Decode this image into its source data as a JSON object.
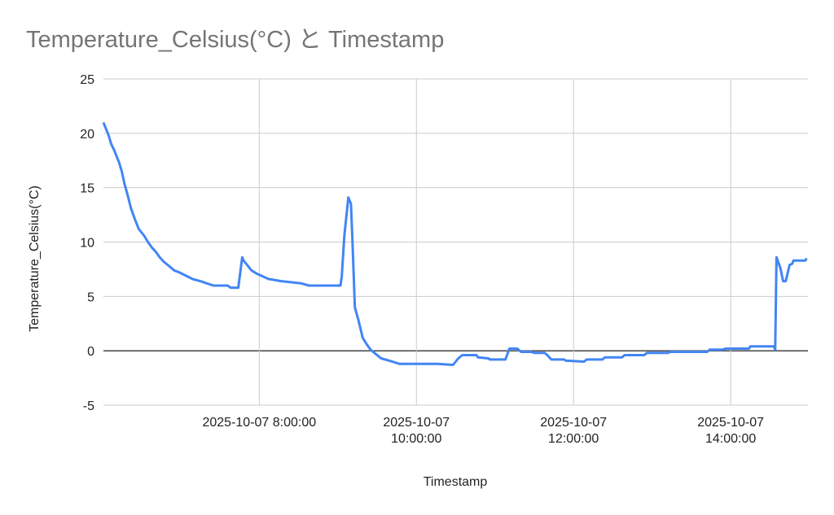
{
  "chart_data": {
    "type": "line",
    "title": "Temperature_Celsius(°C) と Timestamp",
    "xlabel": "Timestamp",
    "ylabel": "Temperature_Celsius(°C)",
    "date": "2025-10-07",
    "xlim": [
      "06:01",
      "14:59"
    ],
    "ylim": [
      -5,
      25
    ],
    "yticks": [
      -5,
      0,
      5,
      10,
      15,
      20,
      25
    ],
    "xticks": [
      {
        "time": "08:00",
        "label": [
          "2025-10-07 8:00:00"
        ]
      },
      {
        "time": "10:00",
        "label": [
          "2025-10-07",
          "10:00:00"
        ]
      },
      {
        "time": "12:00",
        "label": [
          "2025-10-07",
          "12:00:00"
        ]
      },
      {
        "time": "14:00",
        "label": [
          "2025-10-07",
          "14:00:00"
        ]
      }
    ],
    "grid": true,
    "line_color": "#4285f4",
    "series": [
      {
        "x": [
          "06:01",
          "06:05",
          "06:07",
          "06:09",
          "06:11",
          "06:13",
          "06:15",
          "06:17",
          "06:20",
          "06:22",
          "06:25",
          "06:28",
          "06:32",
          "06:35",
          "06:38",
          "06:41",
          "06:44",
          "06:47",
          "06:51",
          "06:55",
          "06:59",
          "07:04",
          "07:09",
          "07:15",
          "07:20",
          "07:25",
          "07:36",
          "07:38",
          "07:44",
          "07:47",
          "07:48",
          "07:50",
          "07:54",
          "07:58",
          "08:07",
          "08:17",
          "08:32",
          "08:38",
          "09:02",
          "09:03",
          "09:05",
          "09:08",
          "09:10",
          "09:11",
          "09:13",
          "09:16",
          "09:19",
          "09:22",
          "09:25",
          "09:28",
          "09:33",
          "09:39",
          "09:47",
          "10:16",
          "10:28",
          "10:32",
          "10:35",
          "10:46",
          "10:47",
          "10:55",
          "10:56",
          "11:08",
          "11:11",
          "11:17",
          "11:20",
          "11:28",
          "11:30",
          "11:38",
          "11:40",
          "11:43",
          "11:53",
          "11:54",
          "12:08",
          "12:10",
          "12:22",
          "12:24",
          "12:37",
          "12:39",
          "12:54",
          "12:56",
          "13:12",
          "13:14",
          "13:42",
          "13:44",
          "13:54",
          "13:56",
          "14:14",
          "14:15",
          "14:33",
          "14:34",
          "14:35",
          "14:38",
          "14:40",
          "14:42",
          "14:45",
          "14:47",
          "14:48",
          "14:57",
          "14:58"
        ],
        "y": [
          21.0,
          19.8,
          19.0,
          18.5,
          17.9,
          17.3,
          16.5,
          15.4,
          14.1,
          13.1,
          12.1,
          11.2,
          10.6,
          10.0,
          9.5,
          9.1,
          8.6,
          8.2,
          7.8,
          7.4,
          7.2,
          6.9,
          6.6,
          6.4,
          6.2,
          6.0,
          6.0,
          5.8,
          5.8,
          8.6,
          8.3,
          8.0,
          7.4,
          7.1,
          6.6,
          6.4,
          6.2,
          6.0,
          6.0,
          6.8,
          10.6,
          14.1,
          13.5,
          10.6,
          4.0,
          2.7,
          1.2,
          0.6,
          0.1,
          -0.2,
          -0.7,
          -0.9,
          -1.2,
          -1.2,
          -1.3,
          -0.7,
          -0.4,
          -0.4,
          -0.6,
          -0.7,
          -0.8,
          -0.8,
          0.2,
          0.2,
          -0.1,
          -0.1,
          -0.2,
          -0.2,
          -0.4,
          -0.8,
          -0.8,
          -0.9,
          -1.0,
          -0.8,
          -0.8,
          -0.6,
          -0.6,
          -0.4,
          -0.4,
          -0.2,
          -0.2,
          -0.1,
          -0.1,
          0.1,
          0.1,
          0.2,
          0.2,
          0.4,
          0.4,
          0.1,
          8.6,
          7.6,
          6.4,
          6.4,
          7.9,
          8.0,
          8.3,
          8.3,
          8.5
        ]
      }
    ]
  }
}
